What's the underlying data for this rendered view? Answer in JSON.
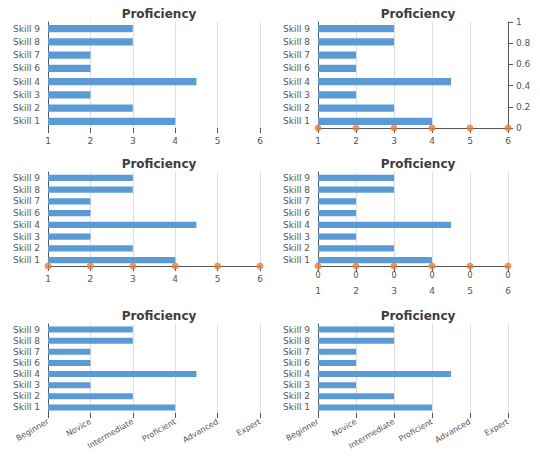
{
  "chart_data": [
    {
      "type": "bar",
      "title": "Proficiency",
      "orientation": "horizontal",
      "categories": [
        "Skill 1",
        "Skill 2",
        "Skill 3",
        "Skill 4",
        "Skill 6",
        "Skill 7",
        "Skill 8",
        "Skill 9"
      ],
      "series": [
        {
          "type": "bar",
          "color": "#5B9BD5",
          "values": [
            4,
            3,
            2,
            4.5,
            2,
            2,
            3,
            3
          ]
        }
      ],
      "xlim": [
        1,
        6
      ],
      "xticks": [
        1,
        2,
        3,
        4,
        5,
        6
      ],
      "grid": true
    },
    {
      "type": "bar",
      "title": "Proficiency",
      "orientation": "horizontal",
      "categories": [
        "Skill 1",
        "Skill 2",
        "Skill 3",
        "Skill 4",
        "Skill 6",
        "Skill 7",
        "Skill 8",
        "Skill 9"
      ],
      "series": [
        {
          "type": "bar",
          "color": "#5B9BD5",
          "values": [
            4,
            3,
            2,
            4.5,
            2,
            2,
            3,
            3
          ]
        },
        {
          "type": "scatter",
          "marker": "circle",
          "color": "#ED7D31",
          "x": [
            1,
            2,
            3,
            4,
            5,
            6
          ]
        }
      ],
      "xlim": [
        1,
        6
      ],
      "xticks": [
        1,
        2,
        3,
        4,
        5,
        6
      ],
      "y2lim": [
        0,
        1
      ],
      "y2ticks": [
        0,
        0.2,
        0.4,
        0.6,
        0.8,
        1
      ],
      "grid": true
    },
    {
      "type": "bar",
      "title": "Proficiency",
      "orientation": "horizontal",
      "categories": [
        "Skill 1",
        "Skill 2",
        "Skill 3",
        "Skill 4",
        "Skill 6",
        "Skill 7",
        "Skill 8",
        "Skill 9"
      ],
      "series": [
        {
          "type": "bar",
          "color": "#5B9BD5",
          "values": [
            4,
            3,
            2,
            4.5,
            2,
            2,
            3,
            3
          ]
        },
        {
          "type": "scatter",
          "marker": "circle",
          "color": "#ED7D31",
          "x": [
            1,
            2,
            3,
            4,
            5,
            6
          ]
        }
      ],
      "xlim": [
        1,
        6
      ],
      "xticks": [
        1,
        2,
        3,
        4,
        5,
        6
      ],
      "grid": true
    },
    {
      "type": "bar",
      "title": "Proficiency",
      "orientation": "horizontal",
      "categories": [
        "Skill 1",
        "Skill 2",
        "Skill 3",
        "Skill 4",
        "Skill 6",
        "Skill 7",
        "Skill 8",
        "Skill 9"
      ],
      "series": [
        {
          "type": "bar",
          "color": "#5B9BD5",
          "values": [
            4,
            3,
            2,
            4.5,
            2,
            2,
            3,
            3
          ]
        },
        {
          "type": "scatter",
          "marker": "circle",
          "color": "#ED7D31",
          "x": [
            1,
            2,
            3,
            4,
            5,
            6
          ]
        }
      ],
      "annotations": [
        {
          "text": "0",
          "x": 1
        },
        {
          "text": "0",
          "x": 2
        },
        {
          "text": "0",
          "x": 3
        },
        {
          "text": "0",
          "x": 4
        },
        {
          "text": "0",
          "x": 5
        },
        {
          "text": "0",
          "x": 6
        }
      ],
      "xlim": [
        1,
        6
      ],
      "xticks": [
        1,
        2,
        3,
        4,
        5,
        6
      ],
      "grid": true
    },
    {
      "type": "bar",
      "title": "Proficiency",
      "orientation": "horizontal",
      "categories": [
        "Skill 1",
        "Skill 2",
        "Skill 3",
        "Skill 4",
        "Skill 6",
        "Skill 7",
        "Skill 8",
        "Skill 9"
      ],
      "series": [
        {
          "type": "bar",
          "color": "#5B9BD5",
          "values": [
            4,
            3,
            2,
            4.5,
            2,
            2,
            3,
            3
          ]
        }
      ],
      "xlim": [
        1,
        6
      ],
      "xticks": [
        {
          "value": 1,
          "label": "Beginner"
        },
        {
          "value": 2,
          "label": "Novice"
        },
        {
          "value": 3,
          "label": "Intermediate"
        },
        {
          "value": 4,
          "label": "Proficient"
        },
        {
          "value": 5,
          "label": "Advanced"
        },
        {
          "value": 6,
          "label": "Expert"
        }
      ],
      "grid": true
    },
    {
      "type": "bar",
      "title": "Proficiency",
      "orientation": "horizontal",
      "categories": [
        "Skill 1",
        "Skill 2",
        "Skill 3",
        "Skill 4",
        "Skill 6",
        "Skill 7",
        "Skill 8",
        "Skill 9"
      ],
      "series": [
        {
          "type": "bar",
          "color": "#5B9BD5",
          "values": [
            4,
            3,
            2,
            4.5,
            2,
            2,
            3,
            3
          ]
        }
      ],
      "xlim": [
        1,
        6
      ],
      "xticks": [
        {
          "value": 1,
          "label": "Beginner"
        },
        {
          "value": 2,
          "label": "Novice"
        },
        {
          "value": 3,
          "label": "Intermediate"
        },
        {
          "value": 4,
          "label": "Proficient"
        },
        {
          "value": 5,
          "label": "Advanced"
        },
        {
          "value": 6,
          "label": "Expert"
        }
      ],
      "grid": true
    }
  ]
}
